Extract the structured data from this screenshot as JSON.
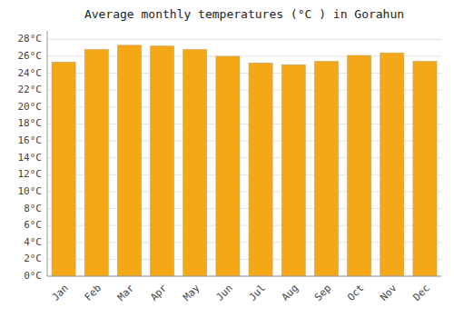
{
  "chart_data": {
    "type": "bar",
    "title": "Average monthly temperatures (°C ) in Gorahun",
    "categories": [
      "Jan",
      "Feb",
      "Mar",
      "Apr",
      "May",
      "Jun",
      "Jul",
      "Aug",
      "Sep",
      "Oct",
      "Nov",
      "Dec"
    ],
    "values": [
      25.3,
      26.8,
      27.3,
      27.2,
      26.8,
      26.0,
      25.2,
      25.0,
      25.4,
      26.1,
      26.4,
      25.4
    ],
    "color": "#F4A818",
    "ylim": [
      0,
      29
    ],
    "yticks": [
      {
        "value": 0,
        "label": "0°C"
      },
      {
        "value": 2,
        "label": "2°C"
      },
      {
        "value": 4,
        "label": "4°C"
      },
      {
        "value": 6,
        "label": "6°C"
      },
      {
        "value": 8,
        "label": "8°C"
      },
      {
        "value": 10,
        "label": "10°C"
      },
      {
        "value": 12,
        "label": "12°C"
      },
      {
        "value": 14,
        "label": "14°C"
      },
      {
        "value": 16,
        "label": "16°C"
      },
      {
        "value": 18,
        "label": "18°C"
      },
      {
        "value": 20,
        "label": "20°C"
      },
      {
        "value": 22,
        "label": "22°C"
      },
      {
        "value": 24,
        "label": "24°C"
      },
      {
        "value": 26,
        "label": "26°C"
      },
      {
        "value": 28,
        "label": "28°C"
      }
    ],
    "grid": true
  }
}
